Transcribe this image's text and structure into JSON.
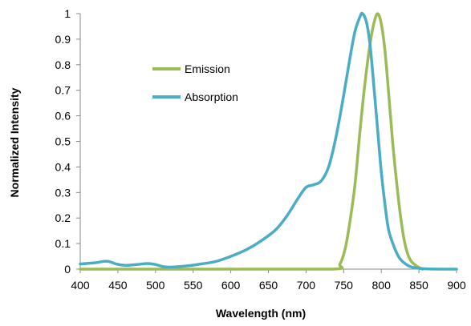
{
  "chart_data": {
    "type": "line",
    "title": "",
    "xlabel": "Wavelength (nm)",
    "ylabel": "Normalized Intensity",
    "xlim": [
      400,
      900
    ],
    "ylim": [
      0,
      1
    ],
    "x_ticks": [
      400,
      450,
      500,
      550,
      600,
      650,
      700,
      750,
      800,
      850,
      900
    ],
    "y_ticks": [
      0,
      0.1,
      0.2,
      0.3,
      0.4,
      0.5,
      0.6,
      0.7,
      0.8,
      0.9,
      1
    ],
    "y_tick_labels": [
      "0",
      "0.1",
      "0.2",
      "0.3",
      "0.4",
      "0.5",
      "0.6",
      "0.7",
      "0.8",
      "0.9",
      "1"
    ],
    "grid": false,
    "legend_position": "upper-left",
    "series": [
      {
        "name": "Emission",
        "color": "#9bbb59",
        "points": [
          [
            400,
            0
          ],
          [
            600,
            0
          ],
          [
            735,
            0
          ],
          [
            745,
            0.02
          ],
          [
            752,
            0.08
          ],
          [
            758,
            0.18
          ],
          [
            765,
            0.33
          ],
          [
            772,
            0.55
          ],
          [
            778,
            0.72
          ],
          [
            785,
            0.88
          ],
          [
            790,
            0.96
          ],
          [
            795,
            1.0
          ],
          [
            800,
            0.96
          ],
          [
            805,
            0.85
          ],
          [
            810,
            0.68
          ],
          [
            815,
            0.5
          ],
          [
            820,
            0.35
          ],
          [
            825,
            0.22
          ],
          [
            830,
            0.12
          ],
          [
            835,
            0.06
          ],
          [
            840,
            0.03
          ],
          [
            848,
            0.01
          ],
          [
            855,
            0
          ]
        ]
      },
      {
        "name": "Absorption",
        "color": "#4bacc6",
        "points": [
          [
            400,
            0.02
          ],
          [
            420,
            0.025
          ],
          [
            430,
            0.03
          ],
          [
            438,
            0.03
          ],
          [
            448,
            0.02
          ],
          [
            460,
            0.015
          ],
          [
            475,
            0.018
          ],
          [
            490,
            0.022
          ],
          [
            500,
            0.018
          ],
          [
            510,
            0.01
          ],
          [
            520,
            0.008
          ],
          [
            540,
            0.012
          ],
          [
            560,
            0.02
          ],
          [
            580,
            0.03
          ],
          [
            600,
            0.05
          ],
          [
            620,
            0.075
          ],
          [
            640,
            0.11
          ],
          [
            660,
            0.155
          ],
          [
            675,
            0.21
          ],
          [
            690,
            0.28
          ],
          [
            700,
            0.32
          ],
          [
            710,
            0.33
          ],
          [
            720,
            0.345
          ],
          [
            730,
            0.4
          ],
          [
            740,
            0.52
          ],
          [
            750,
            0.68
          ],
          [
            758,
            0.82
          ],
          [
            765,
            0.93
          ],
          [
            772,
            0.99
          ],
          [
            775,
            1.0
          ],
          [
            780,
            0.97
          ],
          [
            785,
            0.88
          ],
          [
            790,
            0.72
          ],
          [
            795,
            0.55
          ],
          [
            800,
            0.38
          ],
          [
            805,
            0.25
          ],
          [
            810,
            0.15
          ],
          [
            818,
            0.08
          ],
          [
            825,
            0.04
          ],
          [
            835,
            0.015
          ],
          [
            845,
            0.005
          ],
          [
            860,
            0.001
          ],
          [
            880,
            0
          ],
          [
            900,
            0
          ]
        ]
      }
    ]
  }
}
